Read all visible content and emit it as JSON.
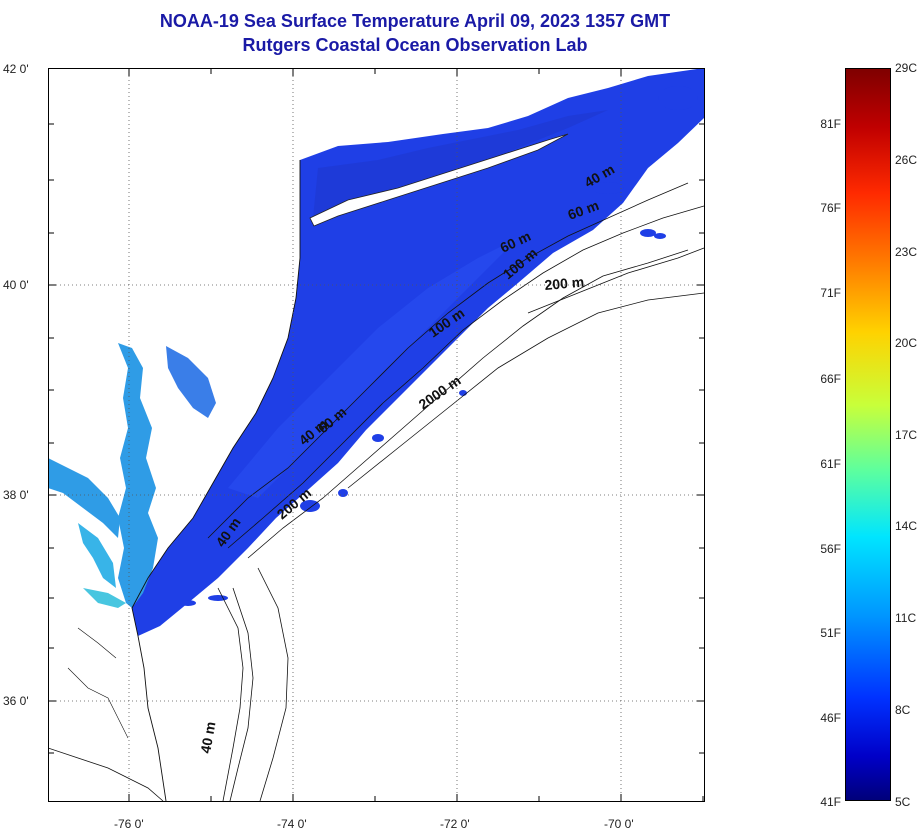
{
  "header": {
    "title": "NOAA-19 Sea Surface Temperature April 09, 2023 1357 GMT",
    "subtitle": "Rutgers Coastal Ocean Observation Lab"
  },
  "map": {
    "lat_labels": [
      "42 0'",
      "40 0'",
      "38 0'",
      "36 0'"
    ],
    "lon_labels": [
      "-76 0'",
      "-74 0'",
      "-72 0'",
      "-70 0'"
    ],
    "contour_labels": [
      "40 m",
      "60 m",
      "60 m",
      "100 m",
      "200 m",
      "2000 m",
      "40 m",
      "60 m",
      "200 m",
      "40 m",
      "100 m",
      "40 m"
    ],
    "land_color": "#ffffff",
    "water_color": "#1f3fe6",
    "bay_color": "#2f8fe0"
  },
  "colorbar": {
    "fahrenheit_labels": [
      "81F",
      "76F",
      "71F",
      "66F",
      "61F",
      "56F",
      "51F",
      "46F",
      "41F"
    ],
    "celsius_labels": [
      "29C",
      "26C",
      "23C",
      "20C",
      "17C",
      "14C",
      "11C",
      "8C",
      "5C"
    ],
    "min_c": 5,
    "max_c": 29
  }
}
